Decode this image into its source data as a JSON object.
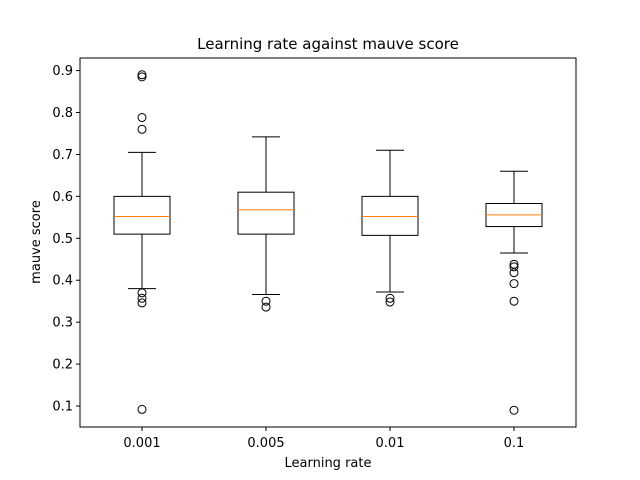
{
  "chart_data": {
    "type": "box",
    "title": "Learning rate against mauve score",
    "xlabel": "Learning rate",
    "ylabel": "mauve score",
    "ylim": [
      0.05,
      0.93
    ],
    "yticks": [
      "0.1",
      "0.2",
      "0.3",
      "0.4",
      "0.5",
      "0.6",
      "0.7",
      "0.8",
      "0.9"
    ],
    "grid": false,
    "colors": {
      "box": "#000000",
      "median": "#ff7f0e",
      "flier": "#000000"
    },
    "categories": [
      "0.001",
      "0.005",
      "0.01",
      "0.1"
    ],
    "boxes": [
      {
        "whisker_low": 0.38,
        "q1": 0.51,
        "median": 0.552,
        "q3": 0.6,
        "whisker_high": 0.705,
        "fliers": [
          0.89,
          0.885,
          0.788,
          0.76,
          0.37,
          0.357,
          0.346,
          0.092
        ]
      },
      {
        "whisker_low": 0.366,
        "q1": 0.51,
        "median": 0.568,
        "q3": 0.61,
        "whisker_high": 0.742,
        "fliers": [
          0.35,
          0.336
        ]
      },
      {
        "whisker_low": 0.372,
        "q1": 0.507,
        "median": 0.552,
        "q3": 0.6,
        "whisker_high": 0.71,
        "fliers": [
          0.357,
          0.348
        ]
      },
      {
        "whisker_low": 0.465,
        "q1": 0.528,
        "median": 0.556,
        "q3": 0.583,
        "whisker_high": 0.66,
        "fliers": [
          0.438,
          0.432,
          0.418,
          0.392,
          0.35,
          0.09
        ]
      }
    ]
  }
}
